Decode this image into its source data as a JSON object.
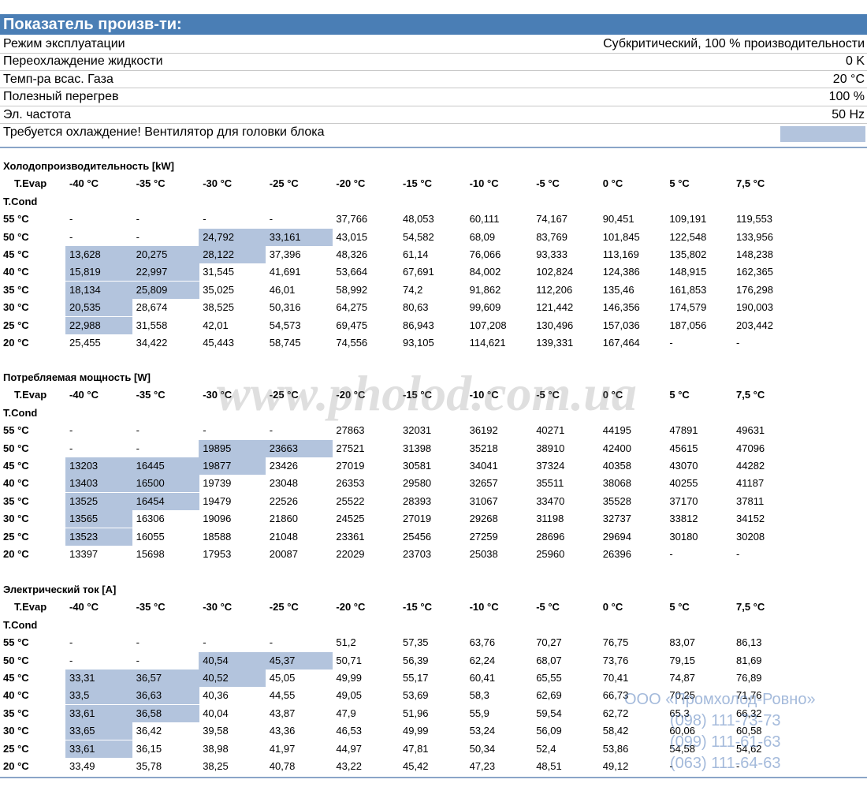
{
  "header": {
    "title": "Показатель произв-ти:"
  },
  "params": [
    {
      "label": "Режим эксплуатации",
      "value": "Субкритический, 100 % производительности"
    },
    {
      "label": "Переохлаждение жидкости",
      "value": "0 K"
    },
    {
      "label": "Темп-ра всас. Газа",
      "value": "20 °C"
    },
    {
      "label": "Полезный перегрев",
      "value": "100 %"
    },
    {
      "label": "Эл. частота",
      "value": "50 Hz"
    }
  ],
  "warning": "Требуется охлаждение! Вентилятор для головки блока",
  "tables": [
    {
      "title": "Холодопроизводительность [kW]",
      "evap_label": "T.Evap",
      "cond_label": "T.Cond",
      "columns": [
        "-40 °C",
        "-35 °C",
        "-30 °C",
        "-25 °C",
        "-20 °C",
        "-15 °C",
        "-10 °C",
        "-5 °C",
        "0 °C",
        "5 °C",
        "7,5 °C"
      ],
      "rows": [
        {
          "cond": "55 °C",
          "values": [
            "-",
            "-",
            "-",
            "-",
            "37,766",
            "48,053",
            "60,111",
            "74,167",
            "90,451",
            "109,191",
            "119,553"
          ]
        },
        {
          "cond": "50 °C",
          "values": [
            "-",
            "-",
            "24,792",
            "33,161",
            "43,015",
            "54,582",
            "68,09",
            "83,769",
            "101,845",
            "122,548",
            "133,956"
          ]
        },
        {
          "cond": "45 °C",
          "values": [
            "13,628",
            "20,275",
            "28,122",
            "37,396",
            "48,326",
            "61,14",
            "76,066",
            "93,333",
            "113,169",
            "135,802",
            "148,238"
          ]
        },
        {
          "cond": "40 °C",
          "values": [
            "15,819",
            "22,997",
            "31,545",
            "41,691",
            "53,664",
            "67,691",
            "84,002",
            "102,824",
            "124,386",
            "148,915",
            "162,365"
          ]
        },
        {
          "cond": "35 °C",
          "values": [
            "18,134",
            "25,809",
            "35,025",
            "46,01",
            "58,992",
            "74,2",
            "91,862",
            "112,206",
            "135,46",
            "161,853",
            "176,298"
          ]
        },
        {
          "cond": "30 °C",
          "values": [
            "20,535",
            "28,674",
            "38,525",
            "50,316",
            "64,275",
            "80,63",
            "99,609",
            "121,442",
            "146,356",
            "174,579",
            "190,003"
          ]
        },
        {
          "cond": "25 °C",
          "values": [
            "22,988",
            "31,558",
            "42,01",
            "54,573",
            "69,475",
            "86,943",
            "107,208",
            "130,496",
            "157,036",
            "187,056",
            "203,442"
          ]
        },
        {
          "cond": "20 °C",
          "values": [
            "25,455",
            "34,422",
            "45,443",
            "58,745",
            "74,556",
            "93,105",
            "114,621",
            "139,331",
            "167,464",
            "-",
            "-"
          ]
        }
      ],
      "highlighted": [
        [
          1,
          2
        ],
        [
          1,
          3
        ],
        [
          2,
          0
        ],
        [
          2,
          1
        ],
        [
          2,
          2
        ],
        [
          3,
          0
        ],
        [
          3,
          1
        ],
        [
          4,
          0
        ],
        [
          4,
          1
        ],
        [
          5,
          0
        ],
        [
          6,
          0
        ]
      ]
    },
    {
      "title": "Потребляемая мощность [W]",
      "evap_label": "T.Evap",
      "cond_label": "T.Cond",
      "columns": [
        "-40 °C",
        "-35 °C",
        "-30 °C",
        "-25 °C",
        "-20 °C",
        "-15 °C",
        "-10 °C",
        "-5 °C",
        "0 °C",
        "5 °C",
        "7,5 °C"
      ],
      "rows": [
        {
          "cond": "55 °C",
          "values": [
            "-",
            "-",
            "-",
            "-",
            "27863",
            "32031",
            "36192",
            "40271",
            "44195",
            "47891",
            "49631"
          ]
        },
        {
          "cond": "50 °C",
          "values": [
            "-",
            "-",
            "19895",
            "23663",
            "27521",
            "31398",
            "35218",
            "38910",
            "42400",
            "45615",
            "47096"
          ]
        },
        {
          "cond": "45 °C",
          "values": [
            "13203",
            "16445",
            "19877",
            "23426",
            "27019",
            "30581",
            "34041",
            "37324",
            "40358",
            "43070",
            "44282"
          ]
        },
        {
          "cond": "40 °C",
          "values": [
            "13403",
            "16500",
            "19739",
            "23048",
            "26353",
            "29580",
            "32657",
            "35511",
            "38068",
            "40255",
            "41187"
          ]
        },
        {
          "cond": "35 °C",
          "values": [
            "13525",
            "16454",
            "19479",
            "22526",
            "25522",
            "28393",
            "31067",
            "33470",
            "35528",
            "37170",
            "37811"
          ]
        },
        {
          "cond": "30 °C",
          "values": [
            "13565",
            "16306",
            "19096",
            "21860",
            "24525",
            "27019",
            "29268",
            "31198",
            "32737",
            "33812",
            "34152"
          ]
        },
        {
          "cond": "25 °C",
          "values": [
            "13523",
            "16055",
            "18588",
            "21048",
            "23361",
            "25456",
            "27259",
            "28696",
            "29694",
            "30180",
            "30208"
          ]
        },
        {
          "cond": "20 °C",
          "values": [
            "13397",
            "15698",
            "17953",
            "20087",
            "22029",
            "23703",
            "25038",
            "25960",
            "26396",
            "-",
            "-"
          ]
        }
      ],
      "highlighted": [
        [
          1,
          2
        ],
        [
          1,
          3
        ],
        [
          2,
          0
        ],
        [
          2,
          1
        ],
        [
          2,
          2
        ],
        [
          3,
          0
        ],
        [
          3,
          1
        ],
        [
          4,
          0
        ],
        [
          4,
          1
        ],
        [
          5,
          0
        ],
        [
          6,
          0
        ]
      ]
    },
    {
      "title": "Электрический ток [A]",
      "evap_label": "T.Evap",
      "cond_label": "T.Cond",
      "columns": [
        "-40 °C",
        "-35 °C",
        "-30 °C",
        "-25 °C",
        "-20 °C",
        "-15 °C",
        "-10 °C",
        "-5 °C",
        "0 °C",
        "5 °C",
        "7,5 °C"
      ],
      "rows": [
        {
          "cond": "55 °C",
          "values": [
            "-",
            "-",
            "-",
            "-",
            "51,2",
            "57,35",
            "63,76",
            "70,27",
            "76,75",
            "83,07",
            "86,13"
          ]
        },
        {
          "cond": "50 °C",
          "values": [
            "-",
            "-",
            "40,54",
            "45,37",
            "50,71",
            "56,39",
            "62,24",
            "68,07",
            "73,76",
            "79,15",
            "81,69"
          ]
        },
        {
          "cond": "45 °C",
          "values": [
            "33,31",
            "36,57",
            "40,52",
            "45,05",
            "49,99",
            "55,17",
            "60,41",
            "65,55",
            "70,41",
            "74,87",
            "76,89"
          ]
        },
        {
          "cond": "40 °C",
          "values": [
            "33,5",
            "36,63",
            "40,36",
            "44,55",
            "49,05",
            "53,69",
            "58,3",
            "62,69",
            "66,73",
            "70,25",
            "71,76"
          ]
        },
        {
          "cond": "35 °C",
          "values": [
            "33,61",
            "36,58",
            "40,04",
            "43,87",
            "47,9",
            "51,96",
            "55,9",
            "59,54",
            "62,72",
            "65,3",
            "66,32"
          ]
        },
        {
          "cond": "30 °C",
          "values": [
            "33,65",
            "36,42",
            "39,58",
            "43,36",
            "46,53",
            "49,99",
            "53,24",
            "56,09",
            "58,42",
            "60,06",
            "60,58"
          ]
        },
        {
          "cond": "25 °C",
          "values": [
            "33,61",
            "36,15",
            "38,98",
            "41,97",
            "44,97",
            "47,81",
            "50,34",
            "52,4",
            "53,86",
            "54,58",
            "54,62"
          ]
        },
        {
          "cond": "20 °C",
          "values": [
            "33,49",
            "35,78",
            "38,25",
            "40,78",
            "43,22",
            "45,42",
            "47,23",
            "48,51",
            "49,12",
            "-",
            "-"
          ]
        }
      ],
      "highlighted": [
        [
          1,
          2
        ],
        [
          1,
          3
        ],
        [
          2,
          0
        ],
        [
          2,
          1
        ],
        [
          2,
          2
        ],
        [
          3,
          0
        ],
        [
          3,
          1
        ],
        [
          4,
          0
        ],
        [
          4,
          1
        ],
        [
          5,
          0
        ],
        [
          6,
          0
        ]
      ]
    }
  ],
  "watermark": {
    "site": "www.pholod.com.ua",
    "company": "ООО «Промхолод-Ровно»",
    "phones": [
      "(098) 111-73-73",
      "(099) 111-61-63",
      "(063) 111-64-63"
    ]
  }
}
